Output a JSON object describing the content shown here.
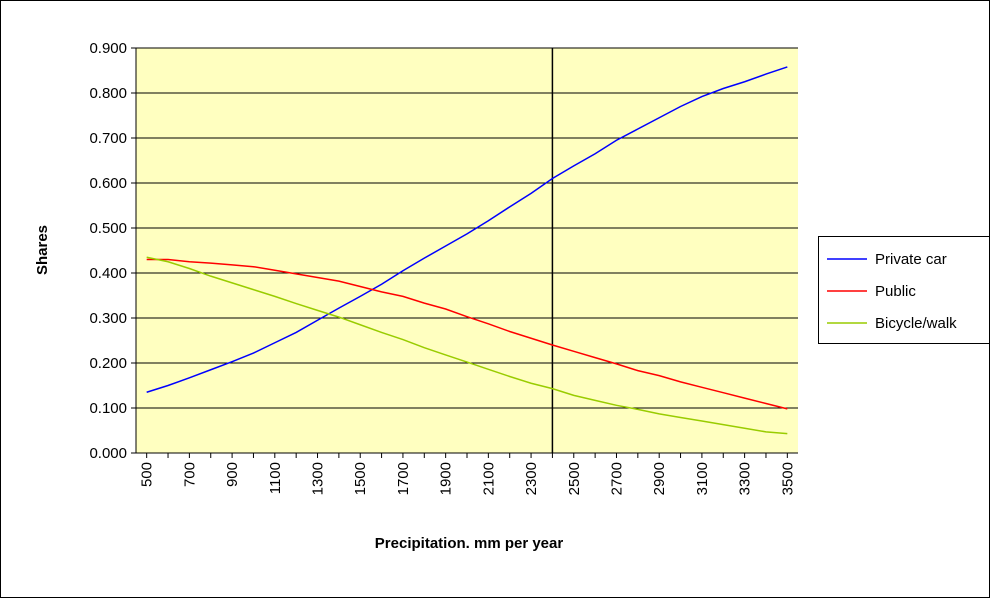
{
  "chart_data": {
    "type": "line",
    "x_label": "Precipitation. mm per year",
    "y_label": "Shares",
    "x": [
      500,
      600,
      700,
      800,
      900,
      1000,
      1100,
      1200,
      1300,
      1400,
      1500,
      1600,
      1700,
      1800,
      1900,
      2000,
      2100,
      2200,
      2300,
      2400,
      2500,
      2600,
      2700,
      2800,
      2900,
      3000,
      3100,
      3200,
      3300,
      3400,
      3500
    ],
    "xlim": [
      450,
      3550
    ],
    "xticks": [
      500,
      700,
      900,
      1100,
      1300,
      1500,
      1700,
      1900,
      2100,
      2300,
      2500,
      2700,
      2900,
      3100,
      3300,
      3500
    ],
    "ylim": [
      0,
      0.9
    ],
    "yticks": [
      {
        "value": 0,
        "label": "0.000"
      },
      {
        "value": 0.1,
        "label": "0.100"
      },
      {
        "value": 0.2,
        "label": "0.200"
      },
      {
        "value": 0.3,
        "label": "0.300"
      },
      {
        "value": 0.4,
        "label": "0.400"
      },
      {
        "value": 0.5,
        "label": "0.500"
      },
      {
        "value": 0.6,
        "label": "0.600"
      },
      {
        "value": 0.7,
        "label": "0.700"
      },
      {
        "value": 0.8,
        "label": "0.800"
      },
      {
        "value": 0.9,
        "label": "0.900"
      }
    ],
    "grid": true,
    "reference_x": 2400,
    "legend": "right",
    "series": [
      {
        "name": "Private car",
        "color": "#0000ff",
        "values": [
          0.135,
          0.15,
          0.167,
          0.185,
          0.203,
          0.222,
          0.245,
          0.268,
          0.295,
          0.322,
          0.348,
          0.375,
          0.405,
          0.433,
          0.46,
          0.487,
          0.516,
          0.547,
          0.577,
          0.61,
          0.638,
          0.665,
          0.695,
          0.72,
          0.745,
          0.77,
          0.792,
          0.81,
          0.825,
          0.842,
          0.858
        ]
      },
      {
        "name": "Public",
        "color": "#ff0000",
        "values": [
          0.43,
          0.43,
          0.425,
          0.422,
          0.418,
          0.414,
          0.406,
          0.398,
          0.39,
          0.382,
          0.37,
          0.358,
          0.348,
          0.333,
          0.32,
          0.303,
          0.287,
          0.27,
          0.255,
          0.24,
          0.226,
          0.212,
          0.198,
          0.183,
          0.172,
          0.158,
          0.146,
          0.134,
          0.122,
          0.11,
          0.098
        ]
      },
      {
        "name": "Bicycle/walk",
        "color": "#99cc00",
        "values": [
          0.435,
          0.425,
          0.41,
          0.393,
          0.378,
          0.363,
          0.348,
          0.332,
          0.317,
          0.302,
          0.285,
          0.268,
          0.252,
          0.234,
          0.218,
          0.202,
          0.186,
          0.17,
          0.155,
          0.143,
          0.128,
          0.117,
          0.106,
          0.097,
          0.087,
          0.079,
          0.071,
          0.063,
          0.055,
          0.047,
          0.043
        ]
      }
    ]
  }
}
